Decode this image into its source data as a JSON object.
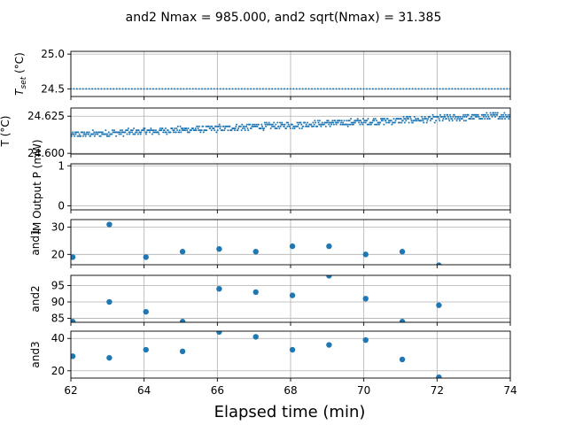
{
  "chart_data": {
    "title": "and2 Nmax = 985.000, and2 sqrt(Nmax) = 31.385",
    "xlabel": "Elapsed time (min)",
    "xlim": [
      62,
      74
    ],
    "xticks": [
      62,
      64,
      66,
      68,
      70,
      72,
      74
    ],
    "grid": true,
    "series_color": "#1f77b4",
    "panels": [
      {
        "id": "tset",
        "type": "scatter",
        "ylabel": "T_set (°C)",
        "ylim": [
          24.39,
          25.04
        ],
        "yticks": [
          24.5,
          25.0
        ],
        "ytick_labels": [
          "24.5",
          "25.0"
        ],
        "marker": "tiny",
        "generator": "constant",
        "constant_value": 24.5,
        "x_start": 62.0,
        "x_step": 0.0833
      },
      {
        "id": "temp",
        "type": "scatter",
        "ylabel": "T (°C)",
        "ylim": [
          24.5995,
          24.6305
        ],
        "yticks": [
          24.6,
          24.625
        ],
        "ytick_labels": [
          "24.600",
          "24.625"
        ],
        "marker": "tiny",
        "generator": "noisy-trend",
        "trend_start": 24.6125,
        "trend_end": 24.6255,
        "quantum": 0.0013,
        "jitter": 0.0042,
        "x_start": 62.0,
        "x_step": 0.0167
      },
      {
        "id": "power",
        "type": "scatter",
        "ylabel": "IM Output P (mW)",
        "ylim": [
          -0.1,
          1.05
        ],
        "yticks": [
          0,
          1
        ],
        "ytick_labels": [
          "0",
          "1"
        ],
        "x": [],
        "y": []
      },
      {
        "id": "and1",
        "type": "scatter",
        "ylabel": "and1",
        "ylim": [
          16.2,
          32.8
        ],
        "yticks": [
          20,
          30
        ],
        "ytick_labels": [
          "20",
          "30"
        ],
        "marker": "dot",
        "x": [
          62.05,
          63.05,
          64.05,
          65.05,
          66.05,
          67.05,
          68.05,
          69.05,
          70.05,
          71.05,
          72.05
        ],
        "y": [
          19,
          31,
          19,
          21,
          22,
          21,
          23,
          23,
          20,
          21,
          16
        ]
      },
      {
        "id": "and2",
        "type": "scatter",
        "ylabel": "and2",
        "ylim": [
          83.8,
          98.1
        ],
        "yticks": [
          85,
          90,
          95
        ],
        "ytick_labels": [
          "85",
          "90",
          "95"
        ],
        "marker": "dot",
        "x": [
          62.05,
          63.05,
          64.05,
          65.05,
          66.05,
          67.05,
          68.05,
          69.05,
          70.05,
          71.05,
          72.05
        ],
        "y": [
          84,
          90,
          87,
          84,
          94,
          93,
          92,
          98,
          91,
          84,
          89
        ]
      },
      {
        "id": "and3",
        "type": "scatter",
        "ylabel": "and3",
        "ylim": [
          15.5,
          44.5
        ],
        "yticks": [
          20,
          40
        ],
        "ytick_labels": [
          "20",
          "40"
        ],
        "marker": "dot",
        "x": [
          62.05,
          63.05,
          64.05,
          65.05,
          66.05,
          67.05,
          68.05,
          69.05,
          70.05,
          71.05,
          72.05
        ],
        "y": [
          29,
          28,
          33,
          32,
          44,
          41,
          33,
          36,
          39,
          27,
          16
        ]
      }
    ]
  }
}
